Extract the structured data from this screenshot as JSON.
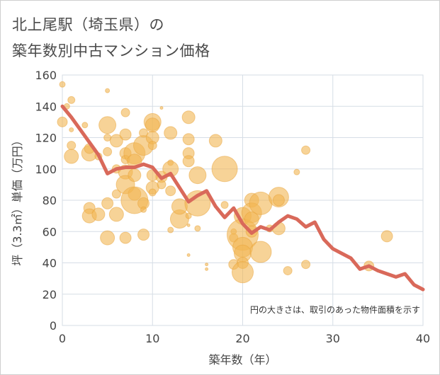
{
  "title_line1": "北上尾駅（埼玉県）の",
  "title_line2": "築年数別中古マンション価格",
  "chart_data": {
    "type": "scatter",
    "xlabel": "築年数（年）",
    "ylabel": "坪（3.3㎡）単価（万円）",
    "xlim": [
      0,
      40
    ],
    "ylim": [
      0,
      160
    ],
    "xticks": [
      0,
      10,
      20,
      30,
      40
    ],
    "yticks": [
      0,
      20,
      40,
      60,
      80,
      100,
      120,
      140,
      160
    ],
    "note": "円の大きさは、取引のあった物件面積を示す",
    "bubble_color": "#f2b552",
    "line_color": "#d9695a",
    "grid": true,
    "bubbles": [
      {
        "x": 0,
        "y": 154,
        "s": 4
      },
      {
        "x": 0,
        "y": 130,
        "s": 7
      },
      {
        "x": 0.5,
        "y": 140,
        "s": 4
      },
      {
        "x": 1,
        "y": 144,
        "s": 5
      },
      {
        "x": 1,
        "y": 125,
        "s": 3
      },
      {
        "x": 1,
        "y": 115,
        "s": 6
      },
      {
        "x": 1,
        "y": 108,
        "s": 10
      },
      {
        "x": 2.5,
        "y": 128,
        "s": 4
      },
      {
        "x": 3,
        "y": 110,
        "s": 11
      },
      {
        "x": 3,
        "y": 113,
        "s": 7
      },
      {
        "x": 3,
        "y": 75,
        "s": 8
      },
      {
        "x": 3,
        "y": 70,
        "s": 10
      },
      {
        "x": 4,
        "y": 71,
        "s": 9
      },
      {
        "x": 4,
        "y": 108,
        "s": 5
      },
      {
        "x": 5,
        "y": 150,
        "s": 3
      },
      {
        "x": 5,
        "y": 128,
        "s": 12
      },
      {
        "x": 5,
        "y": 120,
        "s": 5
      },
      {
        "x": 5,
        "y": 111,
        "s": 6
      },
      {
        "x": 5,
        "y": 78,
        "s": 8
      },
      {
        "x": 5,
        "y": 56,
        "s": 10
      },
      {
        "x": 6,
        "y": 118,
        "s": 9
      },
      {
        "x": 6,
        "y": 100,
        "s": 6
      },
      {
        "x": 6,
        "y": 84,
        "s": 6
      },
      {
        "x": 6,
        "y": 71,
        "s": 10
      },
      {
        "x": 7,
        "y": 136,
        "s": 6
      },
      {
        "x": 7,
        "y": 122,
        "s": 8
      },
      {
        "x": 7,
        "y": 110,
        "s": 8
      },
      {
        "x": 7,
        "y": 106,
        "s": 6
      },
      {
        "x": 7,
        "y": 98,
        "s": 10
      },
      {
        "x": 7,
        "y": 90,
        "s": 13
      },
      {
        "x": 7,
        "y": 56,
        "s": 8
      },
      {
        "x": 8,
        "y": 110,
        "s": 15
      },
      {
        "x": 8,
        "y": 105,
        "s": 10
      },
      {
        "x": 8,
        "y": 96,
        "s": 9
      },
      {
        "x": 8,
        "y": 84,
        "s": 9
      },
      {
        "x": 8,
        "y": 80,
        "s": 19
      },
      {
        "x": 9,
        "y": 123,
        "s": 6
      },
      {
        "x": 9,
        "y": 115,
        "s": 14
      },
      {
        "x": 9,
        "y": 78,
        "s": 8
      },
      {
        "x": 9,
        "y": 74,
        "s": 4
      },
      {
        "x": 9,
        "y": 58,
        "s": 8
      },
      {
        "x": 10,
        "y": 130,
        "s": 12
      },
      {
        "x": 10,
        "y": 128,
        "s": 10
      },
      {
        "x": 10,
        "y": 120,
        "s": 9
      },
      {
        "x": 10,
        "y": 115,
        "s": 6
      },
      {
        "x": 10,
        "y": 96,
        "s": 8
      },
      {
        "x": 10,
        "y": 88,
        "s": 9
      },
      {
        "x": 10,
        "y": 85,
        "s": 5
      },
      {
        "x": 11,
        "y": 139,
        "s": 2
      },
      {
        "x": 11,
        "y": 95,
        "s": 8
      },
      {
        "x": 11,
        "y": 90,
        "s": 6
      },
      {
        "x": 12,
        "y": 123,
        "s": 9
      },
      {
        "x": 12,
        "y": 104,
        "s": 4
      },
      {
        "x": 12,
        "y": 100,
        "s": 11
      },
      {
        "x": 12,
        "y": 86,
        "s": 7
      },
      {
        "x": 12,
        "y": 61,
        "s": 4
      },
      {
        "x": 13,
        "y": 68,
        "s": 13
      },
      {
        "x": 13,
        "y": 76,
        "s": 11
      },
      {
        "x": 14,
        "y": 133,
        "s": 9
      },
      {
        "x": 14,
        "y": 119,
        "s": 8
      },
      {
        "x": 14,
        "y": 110,
        "s": 8
      },
      {
        "x": 14,
        "y": 105,
        "s": 8
      },
      {
        "x": 14,
        "y": 70,
        "s": 4
      },
      {
        "x": 14,
        "y": 64,
        "s": 2
      },
      {
        "x": 14,
        "y": 45,
        "s": 2
      },
      {
        "x": 15,
        "y": 96,
        "s": 12
      },
      {
        "x": 15,
        "y": 78,
        "s": 18
      },
      {
        "x": 15,
        "y": 62,
        "s": 4
      },
      {
        "x": 16,
        "y": 39,
        "s": 2
      },
      {
        "x": 16,
        "y": 36,
        "s": 2
      },
      {
        "x": 17,
        "y": 118,
        "s": 9
      },
      {
        "x": 18,
        "y": 100,
        "s": 18
      },
      {
        "x": 18,
        "y": 77,
        "s": 5
      },
      {
        "x": 19,
        "y": 60,
        "s": 4
      },
      {
        "x": 19,
        "y": 56,
        "s": 6
      },
      {
        "x": 19,
        "y": 39,
        "s": 7
      },
      {
        "x": 20,
        "y": 70,
        "s": 12
      },
      {
        "x": 20,
        "y": 58,
        "s": 22
      },
      {
        "x": 20,
        "y": 50,
        "s": 14
      },
      {
        "x": 20,
        "y": 46,
        "s": 12
      },
      {
        "x": 20,
        "y": 40,
        "s": 8
      },
      {
        "x": 20,
        "y": 34,
        "s": 15
      },
      {
        "x": 21,
        "y": 80,
        "s": 10
      },
      {
        "x": 21,
        "y": 72,
        "s": 14
      },
      {
        "x": 21,
        "y": 68,
        "s": 10
      },
      {
        "x": 21,
        "y": 60,
        "s": 8
      },
      {
        "x": 22,
        "y": 78,
        "s": 16
      },
      {
        "x": 22,
        "y": 47,
        "s": 15
      },
      {
        "x": 23,
        "y": 62,
        "s": 5
      },
      {
        "x": 24,
        "y": 82,
        "s": 14
      },
      {
        "x": 24,
        "y": 80,
        "s": 8
      },
      {
        "x": 24,
        "y": 62,
        "s": 9
      },
      {
        "x": 25,
        "y": 35,
        "s": 6
      },
      {
        "x": 26,
        "y": 98,
        "s": 4
      },
      {
        "x": 27,
        "y": 112,
        "s": 6
      },
      {
        "x": 27,
        "y": 39,
        "s": 6
      },
      {
        "x": 34,
        "y": 38,
        "s": 7
      },
      {
        "x": 36,
        "y": 57,
        "s": 8
      }
    ],
    "trend": {
      "x": [
        0,
        1,
        2,
        3,
        4,
        5,
        6,
        7,
        8,
        9,
        10,
        11,
        12,
        13,
        14,
        15,
        16,
        17,
        18,
        19,
        20,
        21,
        22,
        23,
        24,
        25,
        26,
        27,
        28,
        29,
        30,
        31,
        32,
        33,
        34,
        35,
        36,
        37,
        38,
        39,
        40
      ],
      "y": [
        140,
        133,
        125,
        117,
        109,
        97,
        100,
        101,
        101,
        103,
        101,
        94,
        97,
        88,
        79,
        83,
        86,
        76,
        69,
        75,
        65,
        59,
        63,
        61,
        66,
        70,
        68,
        63,
        66,
        55,
        49,
        46,
        43,
        36,
        38,
        35,
        33,
        31,
        33,
        26,
        23
      ]
    }
  }
}
